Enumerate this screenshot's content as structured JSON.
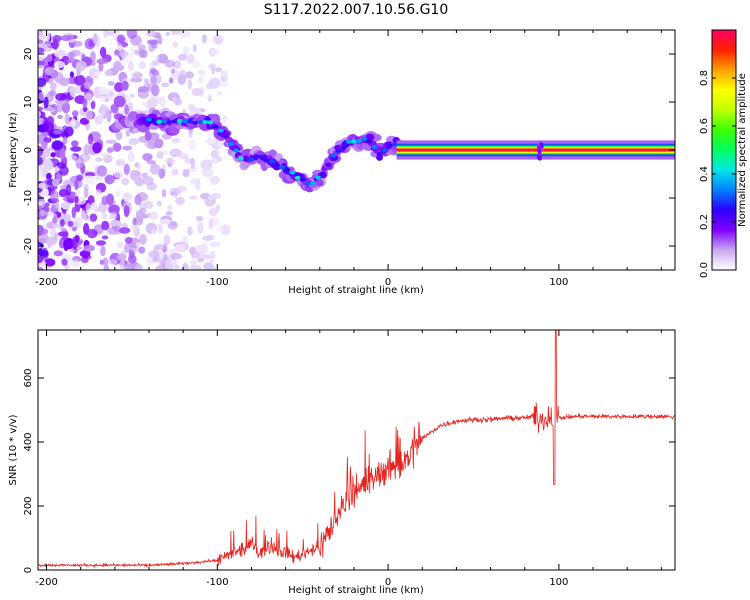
{
  "title": "S117.2022.007.10.56.G10",
  "chart_data": [
    {
      "type": "heatmap",
      "title": "",
      "xlabel": "Height of straight line (km)",
      "ylabel": "Frequency (Hz)",
      "xlim": [
        -205,
        168
      ],
      "ylim": [
        -25,
        25
      ],
      "xticks": [
        -200,
        -100,
        0,
        100
      ],
      "yticks": [
        -20,
        -10,
        0,
        10,
        20
      ],
      "colorbar": {
        "label": "Normalized spectral amplitude",
        "range": [
          0,
          1
        ],
        "ticks": [
          0.0,
          0.2,
          0.4,
          0.6,
          0.8
        ],
        "tick_labels": [
          "0.0",
          "0.2",
          "0.4",
          "0.6",
          "0.8"
        ],
        "colormap": [
          "#ffffff",
          "#c9a8f3",
          "#7f00ff",
          "#2d00ff",
          "#0080ff",
          "#00e6e6",
          "#00ff60",
          "#3cff00",
          "#c0ff00",
          "#ffff00",
          "#ffa000",
          "#ff2000",
          "#ff0066"
        ]
      },
      "ridge": {
        "x": [
          -140,
          -120,
          -105,
          -95,
          -85,
          -75,
          -65,
          -55,
          -45,
          -40,
          -35,
          -30,
          -25,
          -20,
          -15,
          -10,
          -5,
          0,
          5,
          10,
          20,
          40,
          60,
          80,
          90,
          100,
          120,
          140,
          168
        ],
        "y": [
          6,
          6,
          6,
          3,
          -2,
          -1,
          -3,
          -5,
          -7,
          -6,
          -3,
          0,
          1,
          2,
          2,
          2,
          -1,
          1,
          1,
          0,
          0,
          0,
          0,
          0,
          0,
          0,
          0,
          0,
          0
        ]
      }
    },
    {
      "type": "line",
      "title": "",
      "xlabel": "Height of straight line (km)",
      "ylabel": "SNR (10 * v/v)",
      "xlim": [
        -205,
        168
      ],
      "ylim": [
        0,
        750
      ],
      "xticks": [
        -200,
        -100,
        0,
        100
      ],
      "yticks": [
        0,
        200,
        400,
        600
      ],
      "color": "#e8231f",
      "series": [
        {
          "x": [
            -205,
            -180,
            -160,
            -140,
            -120,
            -110,
            -100,
            -95,
            -90,
            -85,
            -80,
            -75,
            -70,
            -65,
            -60,
            -55,
            -50,
            -45,
            -40,
            -35,
            -30,
            -25,
            -20,
            -15,
            -10,
            -5,
            0,
            5,
            10,
            15,
            20,
            25,
            30,
            40,
            50,
            60,
            70,
            80,
            85,
            90,
            95,
            100,
            110,
            120,
            140,
            160,
            168
          ],
          "y": [
            15,
            15,
            15,
            15,
            20,
            25,
            30,
            40,
            55,
            60,
            80,
            55,
            70,
            60,
            55,
            40,
            50,
            65,
            70,
            120,
            150,
            220,
            250,
            260,
            280,
            300,
            320,
            330,
            340,
            380,
            410,
            430,
            450,
            465,
            470,
            470,
            475,
            475,
            480,
            470,
            480,
            475,
            480,
            480,
            480,
            480,
            478
          ]
        }
      ]
    }
  ]
}
